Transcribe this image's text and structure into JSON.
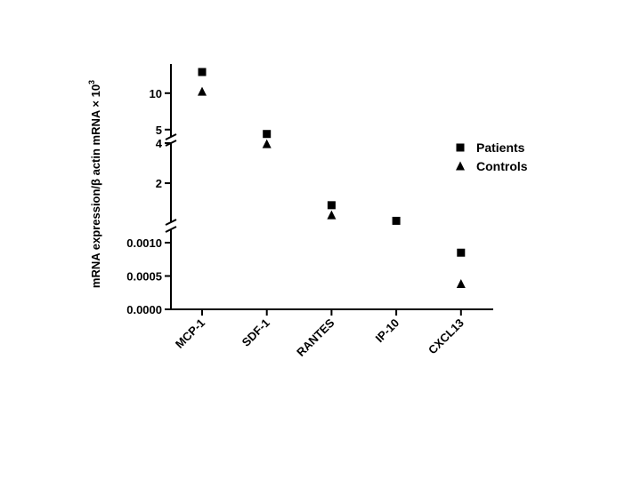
{
  "chart_data": {
    "type": "scatter",
    "categories": [
      "MCP-1",
      "SDF-1",
      "RANTES",
      "IP-10",
      "CXCL13"
    ],
    "ylabel_main": "mRNA expression/β actin mRNA × 10",
    "ylabel_sup": "3",
    "y_axis_segments": [
      {
        "range": [
          4,
          14
        ],
        "ticks": [
          "5",
          "10"
        ],
        "tick_values": [
          5,
          10
        ]
      },
      {
        "range": [
          0.05,
          4
        ],
        "ticks": [
          "4",
          "2"
        ],
        "tick_values": [
          4,
          2
        ]
      },
      {
        "range": [
          0,
          0.0012
        ],
        "ticks": [
          "0.0010",
          "0.0005",
          "0.0000"
        ],
        "tick_values": [
          0.001,
          0.0005,
          0
        ]
      }
    ],
    "series": [
      {
        "name": "Patients",
        "marker": "square",
        "points": [
          {
            "category": "MCP-1",
            "value": 12.9
          },
          {
            "category": "SDF-1",
            "value": 4.4
          },
          {
            "category": "RANTES",
            "value": 0.9
          },
          {
            "category": "IP-10",
            "value": 0.12
          },
          {
            "category": "CXCL13",
            "value": 0.00085
          }
        ]
      },
      {
        "name": "Controls",
        "marker": "triangle",
        "points": [
          {
            "category": "MCP-1",
            "value": 10.2
          },
          {
            "category": "SDF-1",
            "value": 3.95
          },
          {
            "category": "RANTES",
            "value": 0.4
          },
          {
            "category": "CXCL13",
            "value": 0.00038
          }
        ]
      }
    ],
    "legend": {
      "position": "right",
      "items": [
        {
          "name": "Patients",
          "marker": "square"
        },
        {
          "name": "Controls",
          "marker": "triangle"
        }
      ]
    },
    "grid": false,
    "color": "#000000"
  }
}
